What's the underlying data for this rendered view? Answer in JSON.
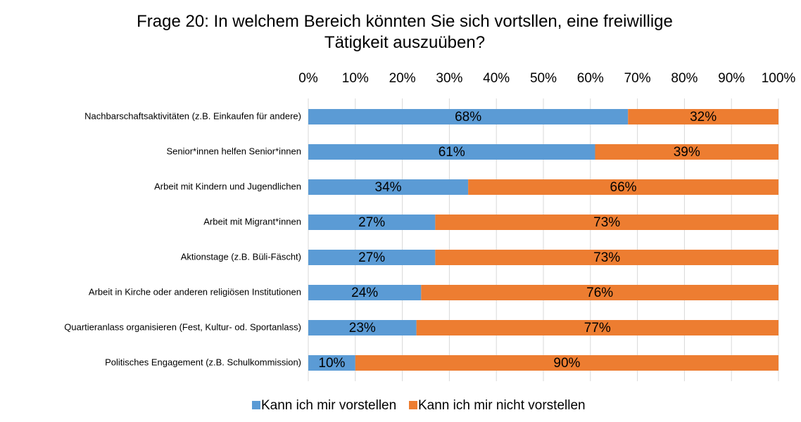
{
  "chart_data": {
    "type": "stacked_bar_horizontal",
    "title": "Frage 20: In welchem Bereich könnten Sie sich vortsllen, eine freiwillige Tätigkeit auszuüben?",
    "categories": [
      "Nachbarschaftsaktivitäten (z.B. Einkaufen für andere)",
      "Senior*innen helfen Senior*innen",
      "Arbeit mit Kindern und Jugendlichen",
      "Arbeit mit Migrant*innen",
      "Aktionstage (z.B. Büli-Fäscht)",
      "Arbeit in Kirche oder anderen religiösen Institutionen",
      "Quartieranlass organisieren (Fest, Kultur- od. Sportanlass)",
      "Politisches Engagement (z.B. Schulkommission)"
    ],
    "series": [
      {
        "name": "Kann ich mir vorstellen",
        "color": "#5b9bd5",
        "values": [
          68,
          61,
          34,
          27,
          27,
          24,
          23,
          10
        ],
        "value_labels": [
          "68%",
          "61%",
          "34%",
          "27%",
          "27%",
          "24%",
          "23%",
          "10%"
        ]
      },
      {
        "name": "Kann ich mir nicht vorstellen",
        "color": "#ed7d31",
        "values": [
          32,
          39,
          66,
          73,
          73,
          76,
          77,
          90
        ],
        "value_labels": [
          "32%",
          "39%",
          "66%",
          "73%",
          "73%",
          "76%",
          "77%",
          "90%"
        ]
      }
    ],
    "xlim": [
      0,
      100
    ],
    "xticks": [
      {
        "value": 0,
        "label": "0%"
      },
      {
        "value": 10,
        "label": "10%"
      },
      {
        "value": 20,
        "label": "20%"
      },
      {
        "value": 30,
        "label": "30%"
      },
      {
        "value": 40,
        "label": "40%"
      },
      {
        "value": 50,
        "label": "50%"
      },
      {
        "value": 60,
        "label": "60%"
      },
      {
        "value": 70,
        "label": "70%"
      },
      {
        "value": 80,
        "label": "80%"
      },
      {
        "value": 90,
        "label": "90%"
      },
      {
        "value": 100,
        "label": "100%"
      }
    ],
    "grid": true,
    "legend": "bottom"
  }
}
